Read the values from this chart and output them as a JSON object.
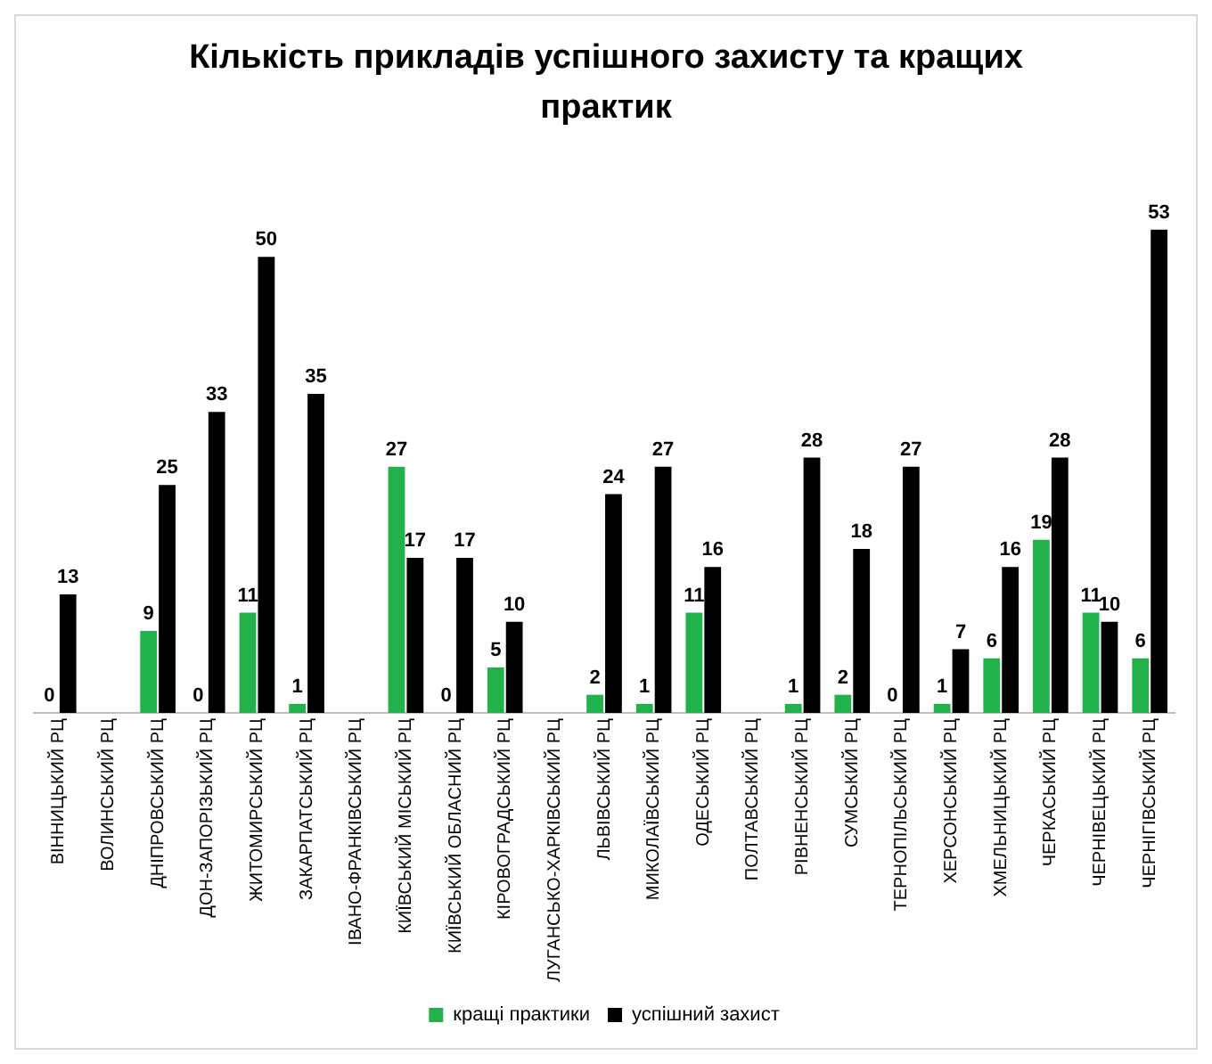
{
  "chart_data": {
    "type": "bar",
    "title": "Кількість прикладів успішного захисту та кращих практик",
    "categories": [
      "ВІННИЦЬКИЙ РЦ",
      "ВОЛИНСЬКИЙ РЦ",
      "ДНІПРОВСЬКИЙ РЦ",
      "ДОН-ЗАПОРІЗЬКИЙ РЦ",
      "ЖИТОМИРСЬКИЙ РЦ",
      "ЗАКАРПАТСЬКИЙ РЦ",
      "ІВАНО-ФРАНКІВСЬКИЙ РЦ",
      "КИЇВСЬКИЙ МІСЬКИЙ РЦ",
      "КИЇВСЬКИЙ ОБЛАСНИЙ РЦ",
      "КІРОВОГРАДСЬКИЙ РЦ",
      "ЛУГАНСЬКО-ХАРКІВСЬКИЙ РЦ",
      "ЛЬВІВСЬКИЙ РЦ",
      "МИКОЛАЇВСЬКИЙ РЦ",
      "ОДЕСЬКИЙ РЦ",
      "ПОЛТАВСЬКИЙ РЦ",
      "РІВНЕНСЬКИЙ РЦ",
      "СУМСЬКИЙ РЦ",
      "ТЕРНОПІЛЬСЬКИЙ РЦ",
      "ХЕРСОНСЬКИЙ РЦ",
      "ХМЕЛЬНИЦЬКИЙ РЦ",
      "ЧЕРКАСЬКИЙ РЦ",
      "ЧЕРНІВЕЦЬКИЙ РЦ",
      "ЧЕРНІГІВСЬКИЙ РЦ"
    ],
    "series": [
      {
        "name": "кращі практики",
        "color": "#22b24c",
        "values": [
          0,
          null,
          9,
          0,
          11,
          1,
          null,
          27,
          0,
          5,
          null,
          2,
          1,
          11,
          null,
          1,
          2,
          0,
          1,
          6,
          19,
          11,
          6
        ]
      },
      {
        "name": "успішний захист",
        "color": "#000000",
        "values": [
          13,
          null,
          25,
          33,
          50,
          35,
          null,
          17,
          17,
          10,
          null,
          24,
          27,
          16,
          null,
          28,
          18,
          27,
          7,
          16,
          28,
          10,
          53
        ]
      }
    ],
    "tick_labels": "x",
    "data_labels": true,
    "legend": "bottom",
    "grid": false
  }
}
